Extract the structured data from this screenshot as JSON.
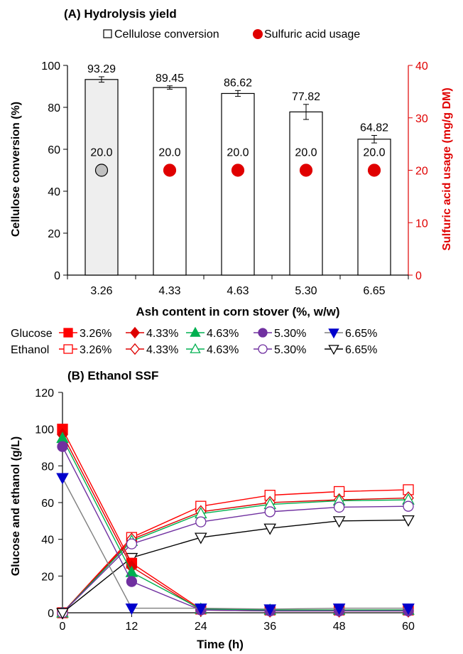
{
  "chart_data": [
    {
      "type": "bar",
      "title": "(A) Hydrolysis yield",
      "xlabel": "Ash content in corn stover (%, w/w)",
      "ylabel": "Cellulose conversion (%)",
      "ylabel_right": "Sulfuric acid usage (mg/g DM)",
      "ylim": [
        0,
        100
      ],
      "ylim_right": [
        0,
        40
      ],
      "yticks": [
        "0",
        "20",
        "40",
        "60",
        "80",
        "100"
      ],
      "yticks_right": [
        "0",
        "10",
        "20",
        "30",
        "40"
      ],
      "categories": [
        "3.26",
        "4.33",
        "4.63",
        "5.30",
        "6.65"
      ],
      "legend_position": "top",
      "legend": [
        "Cellulose conversion",
        "Sulfuric acid usage"
      ],
      "series": [
        {
          "name": "Cellulose conversion",
          "axis": "left",
          "values": [
            93.29,
            89.45,
            86.62,
            77.82,
            64.82
          ],
          "errors": [
            1.3,
            0.8,
            1.4,
            3.6,
            1.8
          ],
          "labels": [
            "93.29",
            "89.45",
            "86.62",
            "77.82",
            "64.82"
          ]
        },
        {
          "name": "Sulfuric acid usage",
          "axis": "right",
          "values": [
            20.0,
            20.0,
            20.0,
            20.0,
            20.0
          ],
          "labels": [
            "20.0",
            "20.0",
            "20.0",
            "20.0",
            "20.0"
          ]
        }
      ],
      "colors": {
        "accent": "#e00000",
        "bar_highlight": "#eeeeee",
        "marker_highlight": "#c0c0c0"
      }
    },
    {
      "type": "line",
      "title": "(B) Ethanol SSF",
      "xlabel": "Time (h)",
      "ylabel": "Glucose and ethanol (g/L)",
      "xlim": [
        0,
        60
      ],
      "ylim": [
        0,
        120
      ],
      "xticks": [
        "0",
        "12",
        "24",
        "36",
        "48",
        "60"
      ],
      "yticks": [
        "0",
        "20",
        "40",
        "60",
        "80",
        "100",
        "120"
      ],
      "legend_position": "top",
      "legend_rows": [
        "Glucose",
        "Ethanol"
      ],
      "x": [
        0,
        12,
        24,
        36,
        48,
        60
      ],
      "series": [
        {
          "name": "3.26%",
          "group": "Glucose",
          "marker": "square",
          "filled": true,
          "color": "#ff0000",
          "values": [
            100,
            27,
            2,
            1.5,
            1.5,
            1.5
          ]
        },
        {
          "name": "4.33%",
          "group": "Glucose",
          "marker": "diamond",
          "filled": true,
          "color": "#dd0000",
          "values": [
            97,
            25,
            1.5,
            1,
            1,
            1
          ]
        },
        {
          "name": "4.63%",
          "group": "Glucose",
          "marker": "triangle",
          "filled": true,
          "color": "#00b050",
          "values": [
            95,
            22,
            2,
            1.5,
            1.5,
            1.5
          ]
        },
        {
          "name": "5.30%",
          "group": "Glucose",
          "marker": "circle",
          "filled": true,
          "color": "#7030a0",
          "values": [
            90.5,
            17,
            1.5,
            1,
            1,
            1
          ]
        },
        {
          "name": "6.65%",
          "group": "Glucose",
          "marker": "triangle-down",
          "filled": true,
          "color": "#0000cc",
          "values": [
            73.5,
            2.5,
            2.5,
            2,
            2.5,
            2.5
          ]
        },
        {
          "name": "3.26%",
          "group": "Ethanol",
          "marker": "square",
          "filled": false,
          "color": "#ff0000",
          "values": [
            0,
            41,
            58,
            64,
            66,
            67
          ]
        },
        {
          "name": "4.33%",
          "group": "Ethanol",
          "marker": "diamond",
          "filled": false,
          "color": "#dd0000",
          "values": [
            0,
            40,
            55,
            60,
            61.5,
            62.5
          ]
        },
        {
          "name": "4.63%",
          "group": "Ethanol",
          "marker": "triangle",
          "filled": false,
          "color": "#00b050",
          "values": [
            0,
            39,
            54,
            59,
            61,
            61.5
          ]
        },
        {
          "name": "5.30%",
          "group": "Ethanol",
          "marker": "circle",
          "filled": false,
          "color": "#7030a0",
          "values": [
            0,
            37.5,
            49.5,
            55,
            57.5,
            58
          ]
        },
        {
          "name": "6.65%",
          "group": "Ethanol",
          "marker": "triangle-down",
          "filled": false,
          "color": "#000000",
          "values": [
            0,
            30,
            41,
            46,
            50,
            50.5
          ]
        }
      ]
    }
  ]
}
